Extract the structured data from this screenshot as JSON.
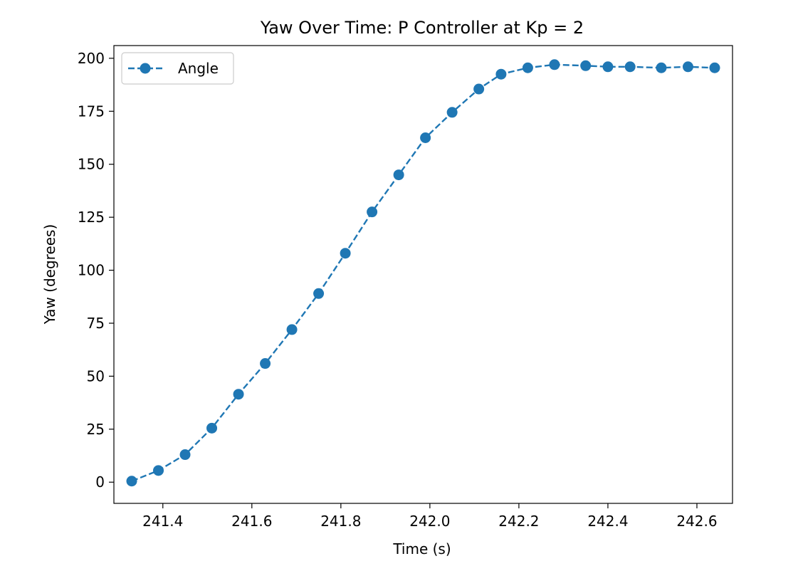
{
  "chart_data": {
    "type": "line",
    "title": "Yaw Over Time: P Controller at Kp = 2",
    "xlabel": "Time (s)",
    "ylabel": "Yaw (degrees)",
    "xlim": [
      241.29,
      242.68
    ],
    "ylim": [
      -10,
      206
    ],
    "x_ticks": [
      241.4,
      241.6,
      241.8,
      242.0,
      242.2,
      242.4,
      242.6
    ],
    "x_tick_labels": [
      "241.4",
      "241.6",
      "241.8",
      "242.0",
      "242.2",
      "242.4",
      "242.6"
    ],
    "y_ticks": [
      0,
      25,
      50,
      75,
      100,
      125,
      150,
      175,
      200
    ],
    "y_tick_labels": [
      "0",
      "25",
      "50",
      "75",
      "100",
      "125",
      "150",
      "175",
      "200"
    ],
    "grid": false,
    "legend_position": "top-left",
    "series": [
      {
        "name": "Angle",
        "color": "#1f77b4",
        "line_style": "dashed",
        "marker": "circle",
        "x": [
          241.33,
          241.39,
          241.45,
          241.51,
          241.57,
          241.63,
          241.69,
          241.75,
          241.81,
          241.87,
          241.93,
          241.99,
          242.05,
          242.11,
          242.16,
          242.22,
          242.28,
          242.35,
          242.4,
          242.45,
          242.52,
          242.58,
          242.64
        ],
        "y": [
          0.5,
          5.5,
          13,
          25.5,
          41.5,
          56,
          72,
          89,
          108,
          127.5,
          145,
          162.5,
          174.5,
          185.5,
          192.5,
          195.5,
          197,
          196.5,
          196,
          196,
          195.5,
          196,
          195.5
        ]
      }
    ]
  }
}
